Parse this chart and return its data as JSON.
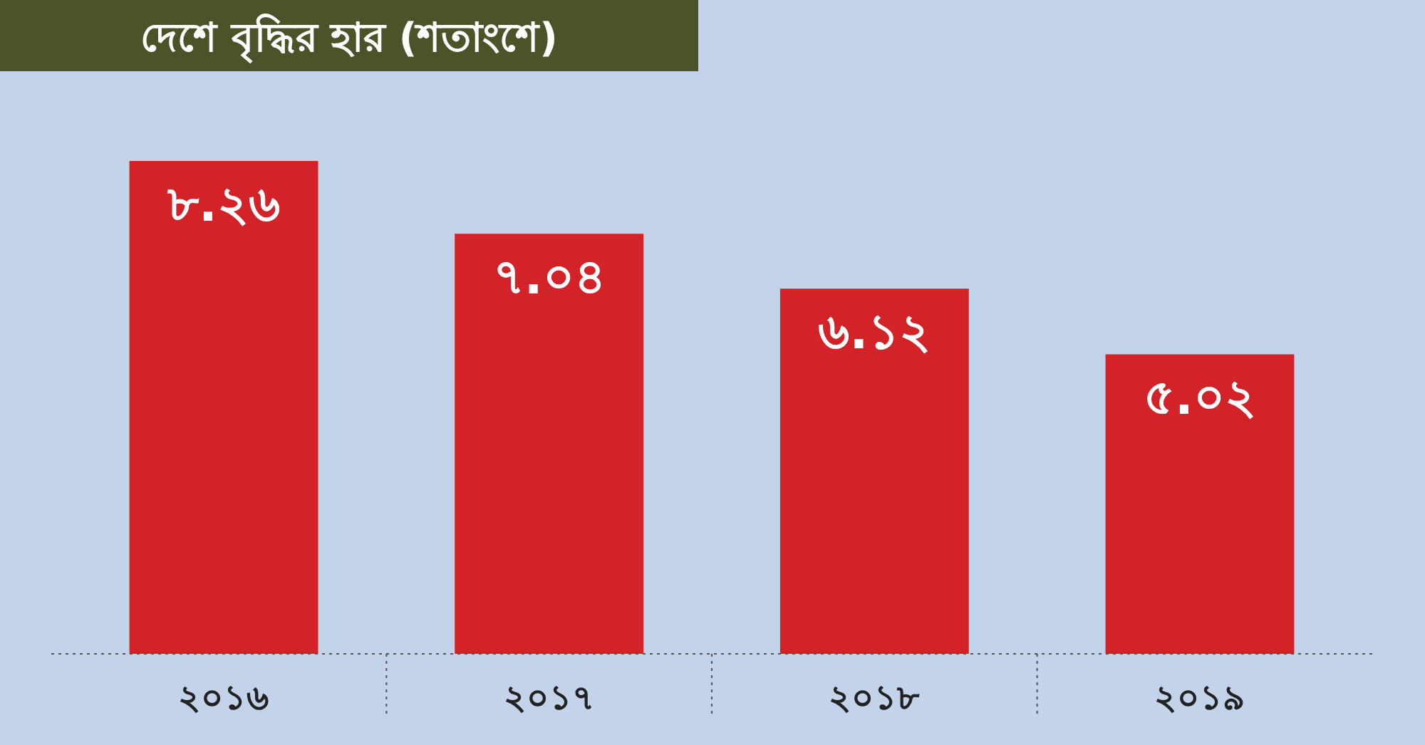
{
  "chart_data": {
    "type": "bar",
    "title": "দেশে বৃদ্ধির হার (শতাংশে)",
    "categories": [
      "২০১৬",
      "২০১৭",
      "২০১৮",
      "২০১৯"
    ],
    "values": [
      8.26,
      7.04,
      6.12,
      5.02
    ],
    "value_labels": [
      "৮.২৬",
      "৭.০৪",
      "৬.১২",
      "৫.০২"
    ],
    "color": "#d42229"
  }
}
